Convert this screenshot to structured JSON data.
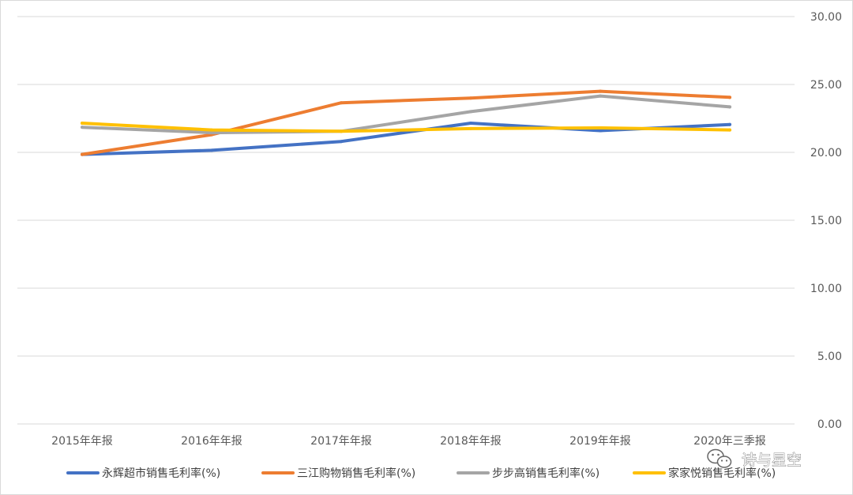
{
  "chart_data": {
    "type": "line",
    "categories": [
      "2015年年报",
      "2016年年报",
      "2017年年报",
      "2018年年报",
      "2019年年报",
      "2020年三季报"
    ],
    "ylim": [
      0,
      30
    ],
    "yticks": [
      "0.00",
      "5.00",
      "10.00",
      "15.00",
      "20.00",
      "25.00",
      "30.00"
    ],
    "ytick_values": [
      0,
      5,
      10,
      15,
      20,
      25,
      30
    ],
    "y_axis_side": "right",
    "grid": true,
    "legend_position": "bottom",
    "series": [
      {
        "name": "永辉超市销售毛利率(%)",
        "color": "#4472c4",
        "values": [
          19.85,
          20.15,
          20.8,
          22.15,
          21.6,
          22.05
        ]
      },
      {
        "name": "三江购物销售毛利率(%)",
        "color": "#ed7d31",
        "values": [
          19.85,
          21.3,
          23.65,
          24.0,
          24.5,
          24.05
        ]
      },
      {
        "name": "步步高销售毛利率(%)",
        "color": "#a5a5a5",
        "values": [
          21.85,
          21.45,
          21.55,
          23.0,
          24.15,
          23.35
        ]
      },
      {
        "name": "家家悦销售毛利率(%)",
        "color": "#ffc000",
        "values": [
          22.15,
          21.65,
          21.55,
          21.75,
          21.8,
          21.65
        ]
      }
    ]
  },
  "watermark": {
    "text": "诗与星空",
    "icon": "wechat-icon"
  }
}
